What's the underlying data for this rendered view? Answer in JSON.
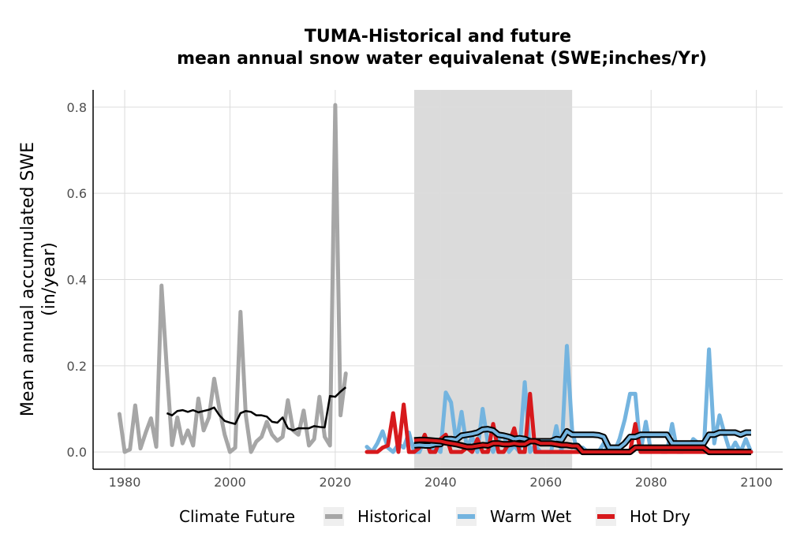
{
  "chart_data": {
    "type": "line",
    "title": [
      "TUMA-Historical and future",
      "mean annual snow water equivalenat (SWE;inches/Yr)"
    ],
    "xlabel": "",
    "ylabel": [
      "Mean annual accumulated SWE",
      "(in/year)"
    ],
    "xlim": [
      1974,
      2105
    ],
    "ylim": [
      -0.04,
      0.84
    ],
    "xticks": [
      1980,
      2000,
      2020,
      2040,
      2060,
      2080,
      2100
    ],
    "yticks": [
      0.0,
      0.2,
      0.4,
      0.6,
      0.8
    ],
    "ytick_labels": [
      "0.0",
      "0.2",
      "0.4",
      "0.6",
      "0.8"
    ],
    "grid": true,
    "shaded_period": {
      "x_start": 2035,
      "x_end": 2065,
      "color": "#dbdbdb"
    },
    "legend": {
      "title": "Climate Future",
      "placement": "bottom",
      "entries": [
        "Historical",
        "Warm Wet",
        "Hot Dry"
      ]
    },
    "series": [
      {
        "name": "Historical",
        "color": "#a6a6a6",
        "x": [
          1979,
          1980,
          1981,
          1982,
          1983,
          1984,
          1985,
          1986,
          1987,
          1988,
          1989,
          1990,
          1991,
          1992,
          1993,
          1994,
          1995,
          1996,
          1997,
          1998,
          1999,
          2000,
          2001,
          2002,
          2003,
          2004,
          2005,
          2006,
          2007,
          2008,
          2009,
          2010,
          2011,
          2012,
          2013,
          2014,
          2015,
          2016,
          2017,
          2018,
          2019,
          2020,
          2021,
          2022
        ],
        "y": [
          0.088,
          0.0,
          0.006,
          0.108,
          0.008,
          0.045,
          0.078,
          0.012,
          0.386,
          0.193,
          0.016,
          0.08,
          0.02,
          0.05,
          0.015,
          0.124,
          0.05,
          0.08,
          0.17,
          0.1,
          0.04,
          0.0,
          0.01,
          0.325,
          0.086,
          0.0,
          0.024,
          0.035,
          0.07,
          0.04,
          0.026,
          0.035,
          0.12,
          0.05,
          0.04,
          0.096,
          0.015,
          0.03,
          0.128,
          0.035,
          0.015,
          0.805,
          0.085,
          0.182
        ]
      },
      {
        "name": "Historical rolling mean",
        "color": "#000000",
        "x": [
          1988,
          1989,
          1990,
          1991,
          1992,
          1993,
          1994,
          1995,
          1996,
          1997,
          1998,
          1999,
          2000,
          2001,
          2002,
          2003,
          2004,
          2005,
          2006,
          2007,
          2008,
          2009,
          2010,
          2011,
          2012,
          2013,
          2014,
          2015,
          2016,
          2017,
          2018,
          2019,
          2020,
          2021,
          2022
        ],
        "y": [
          0.09,
          0.085,
          0.095,
          0.097,
          0.093,
          0.097,
          0.092,
          0.095,
          0.098,
          0.103,
          0.085,
          0.072,
          0.068,
          0.065,
          0.09,
          0.095,
          0.093,
          0.085,
          0.085,
          0.082,
          0.07,
          0.068,
          0.08,
          0.055,
          0.05,
          0.055,
          0.055,
          0.055,
          0.06,
          0.058,
          0.057,
          0.13,
          0.128,
          0.14,
          0.15
        ]
      },
      {
        "name": "Warm Wet",
        "color": "#74b4df",
        "x": [
          2026,
          2027,
          2028,
          2029,
          2030,
          2031,
          2032,
          2033,
          2034,
          2035,
          2036,
          2037,
          2038,
          2039,
          2040,
          2041,
          2042,
          2043,
          2044,
          2045,
          2046,
          2047,
          2048,
          2049,
          2050,
          2051,
          2052,
          2053,
          2054,
          2055,
          2056,
          2057,
          2058,
          2059,
          2060,
          2061,
          2062,
          2063,
          2064,
          2065,
          2066,
          2067,
          2068,
          2069,
          2070,
          2071,
          2072,
          2073,
          2074,
          2075,
          2076,
          2077,
          2078,
          2079,
          2080,
          2081,
          2082,
          2083,
          2084,
          2085,
          2086,
          2087,
          2088,
          2089,
          2090,
          2091,
          2092,
          2093,
          2094,
          2095,
          2096,
          2097,
          2098,
          2099
        ],
        "y": [
          0.012,
          0.0,
          0.02,
          0.048,
          0.01,
          0.0,
          0.018,
          0.01,
          0.045,
          0.0,
          0.0,
          0.032,
          0.0,
          0.01,
          0.0,
          0.138,
          0.115,
          0.02,
          0.093,
          0.01,
          0.035,
          0.0,
          0.1,
          0.02,
          0.0,
          0.03,
          0.04,
          0.0,
          0.015,
          0.0,
          0.162,
          0.0,
          0.015,
          0.0,
          0.0,
          0.0,
          0.06,
          0.0,
          0.246,
          0.05,
          0.0,
          0.01,
          0.0,
          0.0,
          0.0,
          0.02,
          0.0,
          0.0,
          0.03,
          0.075,
          0.135,
          0.135,
          0.0,
          0.07,
          0.0,
          0.01,
          0.0,
          0.0,
          0.065,
          0.0,
          0.0,
          0.005,
          0.03,
          0.02,
          0.0,
          0.238,
          0.02,
          0.085,
          0.04,
          0.0,
          0.022,
          0.0,
          0.03,
          0.0
        ]
      },
      {
        "name": "Warm Wet rolling mean",
        "color": "#000000",
        "x": [
          2035,
          2036,
          2037,
          2038,
          2039,
          2040,
          2041,
          2042,
          2043,
          2044,
          2045,
          2046,
          2047,
          2048,
          2049,
          2050,
          2051,
          2052,
          2053,
          2054,
          2055,
          2056,
          2057,
          2058,
          2059,
          2060,
          2061,
          2062,
          2063,
          2064,
          2065,
          2066,
          2067,
          2068,
          2069,
          2070,
          2071,
          2072,
          2073,
          2074,
          2075,
          2076,
          2077,
          2078,
          2079,
          2080,
          2081,
          2082,
          2083,
          2084,
          2085,
          2086,
          2087,
          2088,
          2089,
          2090,
          2091,
          2092,
          2093,
          2094,
          2095,
          2096,
          2097,
          2098,
          2099
        ],
        "y": [
          0.015,
          0.016,
          0.015,
          0.015,
          0.018,
          0.018,
          0.03,
          0.03,
          0.028,
          0.038,
          0.04,
          0.042,
          0.045,
          0.052,
          0.053,
          0.05,
          0.04,
          0.038,
          0.035,
          0.03,
          0.032,
          0.03,
          0.025,
          0.025,
          0.025,
          0.025,
          0.025,
          0.03,
          0.028,
          0.048,
          0.04,
          0.04,
          0.04,
          0.04,
          0.04,
          0.039,
          0.035,
          0.01,
          0.01,
          0.01,
          0.02,
          0.035,
          0.035,
          0.04,
          0.04,
          0.04,
          0.04,
          0.04,
          0.04,
          0.02,
          0.02,
          0.02,
          0.02,
          0.02,
          0.02,
          0.02,
          0.04,
          0.04,
          0.045,
          0.045,
          0.045,
          0.045,
          0.04,
          0.045,
          0.045
        ]
      },
      {
        "name": "Hot Dry",
        "color": "#d7191c",
        "x": [
          2026,
          2027,
          2028,
          2029,
          2030,
          2031,
          2032,
          2033,
          2034,
          2035,
          2036,
          2037,
          2038,
          2039,
          2040,
          2041,
          2042,
          2043,
          2044,
          2045,
          2046,
          2047,
          2048,
          2049,
          2050,
          2051,
          2052,
          2053,
          2054,
          2055,
          2056,
          2057,
          2058,
          2059,
          2060,
          2061,
          2062,
          2063,
          2064,
          2065,
          2066,
          2067,
          2068,
          2069,
          2070,
          2071,
          2072,
          2073,
          2074,
          2075,
          2076,
          2077,
          2078,
          2079,
          2080,
          2081,
          2082,
          2083,
          2084,
          2085,
          2086,
          2087,
          2088,
          2089,
          2090,
          2091,
          2092,
          2093,
          2094,
          2095,
          2096,
          2097,
          2098,
          2099
        ],
        "y": [
          0.0,
          0.0,
          0.0,
          0.01,
          0.015,
          0.09,
          0.0,
          0.11,
          0.0,
          0.0,
          0.01,
          0.04,
          0.0,
          0.0,
          0.03,
          0.04,
          0.0,
          0.0,
          0.0,
          0.01,
          0.0,
          0.03,
          0.0,
          0.0,
          0.065,
          0.0,
          0.0,
          0.02,
          0.055,
          0.0,
          0.0,
          0.135,
          0.0,
          0.0,
          0.0,
          0.0,
          0.0,
          0.0,
          0.0,
          0.0,
          0.0,
          0.0,
          0.0,
          0.0,
          0.0,
          0.0,
          0.0,
          0.0,
          0.0,
          0.0,
          0.0,
          0.065,
          0.0,
          0.0,
          0.0,
          0.0,
          0.0,
          0.0,
          0.0,
          0.0,
          0.0,
          0.0,
          0.0,
          0.0,
          0.0,
          0.0,
          0.0,
          0.0,
          0.0,
          0.0,
          0.0,
          0.0,
          0.0,
          0.0
        ]
      },
      {
        "name": "Hot Dry rolling mean",
        "color": "#000000",
        "x": [
          2035,
          2036,
          2037,
          2038,
          2039,
          2040,
          2041,
          2042,
          2043,
          2044,
          2045,
          2046,
          2047,
          2048,
          2049,
          2050,
          2051,
          2052,
          2053,
          2054,
          2055,
          2056,
          2057,
          2058,
          2059,
          2060,
          2061,
          2062,
          2063,
          2064,
          2065,
          2066,
          2067,
          2068,
          2069,
          2070,
          2071,
          2072,
          2073,
          2074,
          2075,
          2076,
          2077,
          2078,
          2079,
          2080,
          2081,
          2082,
          2083,
          2084,
          2085,
          2086,
          2087,
          2088,
          2089,
          2090,
          2091,
          2092,
          2093,
          2094,
          2095,
          2096,
          2097,
          2098,
          2099
        ],
        "y": [
          0.027,
          0.028,
          0.028,
          0.027,
          0.026,
          0.025,
          0.022,
          0.02,
          0.018,
          0.015,
          0.012,
          0.012,
          0.014,
          0.016,
          0.015,
          0.02,
          0.02,
          0.018,
          0.018,
          0.02,
          0.018,
          0.018,
          0.025,
          0.025,
          0.02,
          0.02,
          0.02,
          0.018,
          0.016,
          0.016,
          0.014,
          0.014,
          0.0,
          0.0,
          0.0,
          0.0,
          0.0,
          0.0,
          0.0,
          0.0,
          0.0,
          0.0,
          0.01,
          0.01,
          0.01,
          0.01,
          0.01,
          0.01,
          0.01,
          0.01,
          0.01,
          0.01,
          0.01,
          0.01,
          0.01,
          0.01,
          0.0,
          0.0,
          0.0,
          0.0,
          0.0,
          0.0,
          0.0,
          0.0,
          0.0
        ]
      }
    ]
  }
}
